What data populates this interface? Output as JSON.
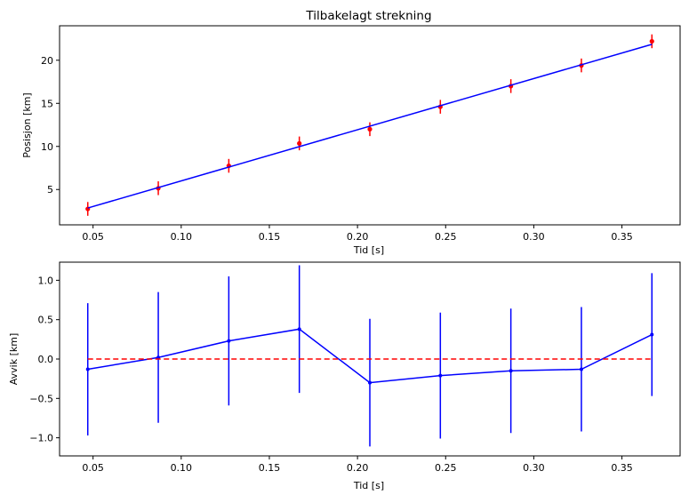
{
  "chart_data": [
    {
      "type": "scatter",
      "title": "Tilbakelagt strekning",
      "xlabel": "Tid [s]",
      "ylabel": "Posisjon [km]",
      "xlim": [
        0.031,
        0.383
      ],
      "ylim": [
        0.9,
        24.0
      ],
      "xticks": [
        0.05,
        0.1,
        0.15,
        0.2,
        0.25,
        0.3,
        0.35
      ],
      "xtick_labels": [
        "0.05",
        "0.10",
        "0.15",
        "0.20",
        "0.25",
        "0.30",
        "0.35"
      ],
      "yticks": [
        5,
        10,
        15,
        20
      ],
      "ytick_labels": [
        "5",
        "10",
        "15",
        "20"
      ],
      "grid": false,
      "series": [
        {
          "kind": "errorbar-points",
          "color": "#ff0000",
          "x": [
            0.047,
            0.087,
            0.127,
            0.167,
            0.207,
            0.247,
            0.287,
            0.327,
            0.367
          ],
          "y": [
            2.75,
            5.15,
            7.75,
            10.35,
            12.0,
            14.6,
            17.0,
            19.4,
            22.2
          ],
          "err": [
            0.8,
            0.8,
            0.8,
            0.8,
            0.8,
            0.8,
            0.8,
            0.8,
            0.8
          ]
        },
        {
          "kind": "line",
          "color": "#0000ff",
          "x": [
            0.047,
            0.367
          ],
          "y": [
            2.85,
            21.85
          ]
        }
      ]
    },
    {
      "type": "line",
      "title": "",
      "xlabel": "Tid [s]",
      "ylabel": "Avvik [km]",
      "xlim": [
        0.031,
        0.383
      ],
      "ylim": [
        -1.23,
        1.23
      ],
      "xticks": [
        0.05,
        0.1,
        0.15,
        0.2,
        0.25,
        0.3,
        0.35
      ],
      "xtick_labels": [
        "0.05",
        "0.10",
        "0.15",
        "0.20",
        "0.25",
        "0.30",
        "0.35"
      ],
      "yticks": [
        -1.0,
        -0.5,
        0.0,
        0.5,
        1.0
      ],
      "ytick_labels": [
        "−1.0",
        "−0.5",
        "0.0",
        "0.5",
        "1.0"
      ],
      "grid": false,
      "series": [
        {
          "kind": "errorbar-line",
          "color": "#0000ff",
          "x": [
            0.047,
            0.087,
            0.127,
            0.167,
            0.207,
            0.247,
            0.287,
            0.327,
            0.367
          ],
          "y": [
            -0.13,
            0.02,
            0.23,
            0.38,
            -0.3,
            -0.21,
            -0.15,
            -0.13,
            0.31
          ],
          "err": [
            0.84,
            0.83,
            0.82,
            0.81,
            0.81,
            0.8,
            0.79,
            0.79,
            0.78
          ]
        },
        {
          "kind": "reference-line",
          "color": "#ff0000",
          "style": "dashed",
          "x": [
            0.047,
            0.367
          ],
          "y": [
            0.0,
            0.0
          ]
        }
      ]
    }
  ]
}
